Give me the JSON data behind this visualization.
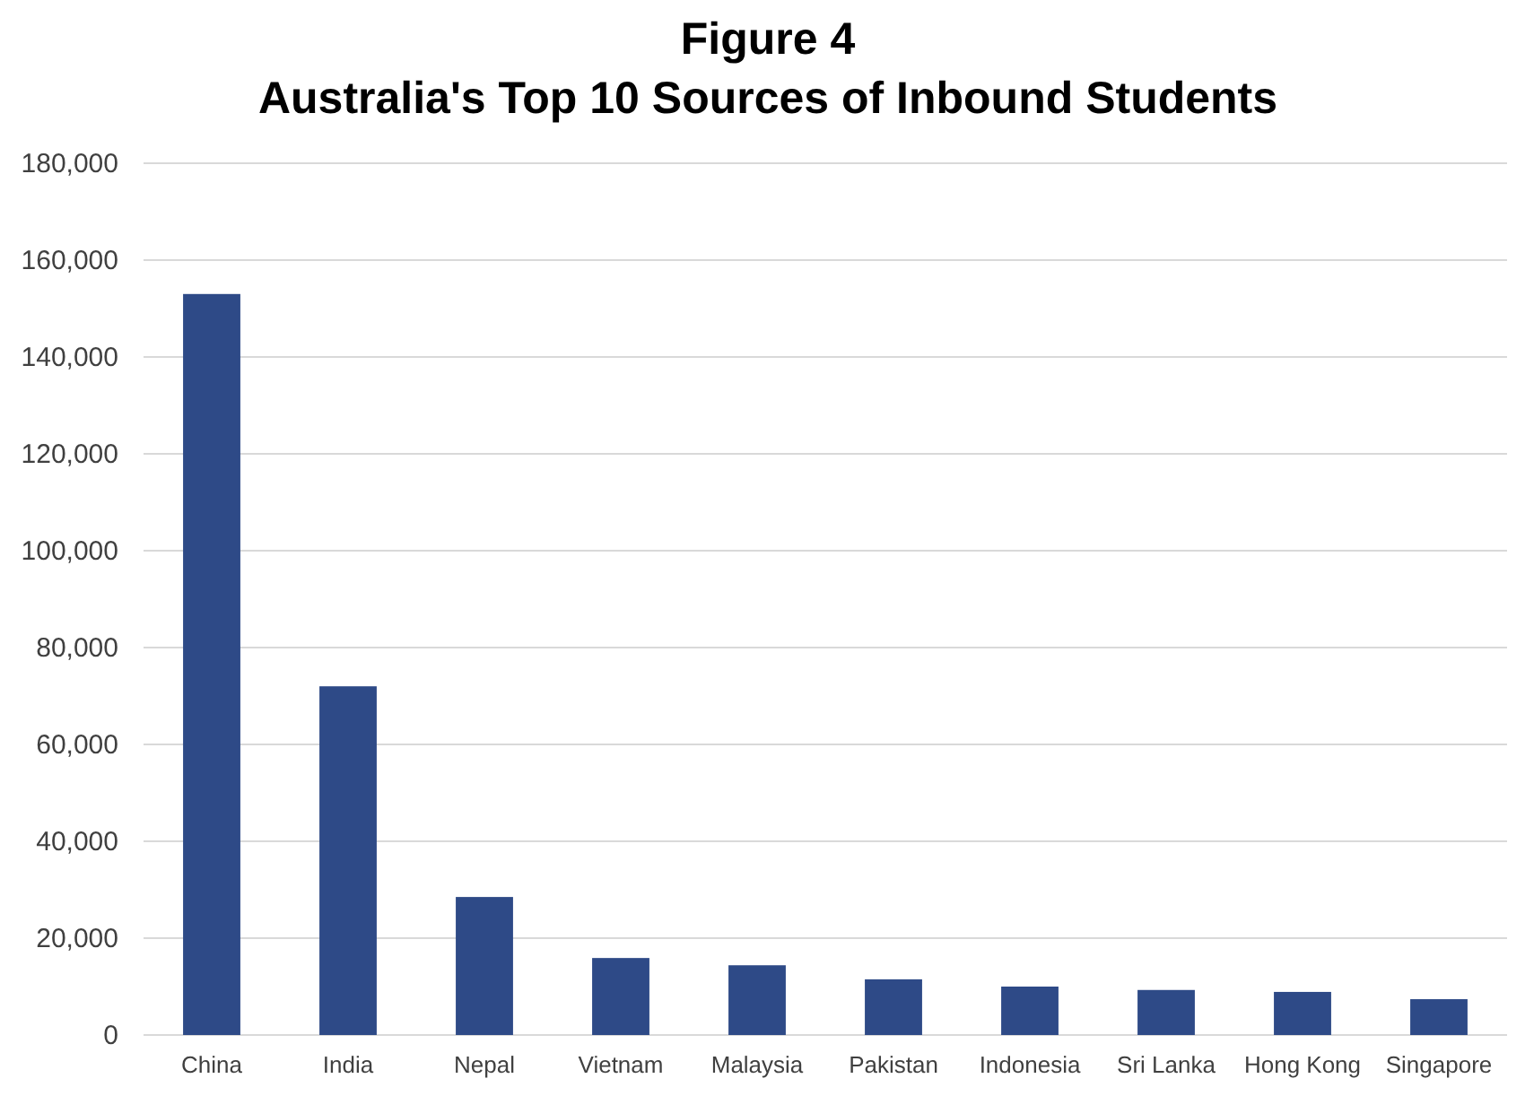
{
  "chart_data": {
    "type": "bar",
    "title": "Figure 4",
    "subtitle": "Australia's Top 10 Sources of Inbound Students",
    "categories": [
      "China",
      "India",
      "Nepal",
      "Vietnam",
      "Malaysia",
      "Pakistan",
      "Indonesia",
      "Sri Lanka",
      "Hong Kong",
      "Singapore"
    ],
    "values": [
      153000,
      72000,
      28500,
      15900,
      14400,
      11500,
      10000,
      9300,
      8900,
      7400
    ],
    "color": "#2e4a87",
    "ylim": [
      0,
      180000
    ],
    "yticks": [
      {
        "value": 0,
        "label": "0"
      },
      {
        "value": 20000,
        "label": "20,000"
      },
      {
        "value": 40000,
        "label": "40,000"
      },
      {
        "value": 60000,
        "label": "60,000"
      },
      {
        "value": 80000,
        "label": "80,000"
      },
      {
        "value": 100000,
        "label": "100,000"
      },
      {
        "value": 120000,
        "label": "120,000"
      },
      {
        "value": 140000,
        "label": "140,000"
      },
      {
        "value": 160000,
        "label": "160,000"
      },
      {
        "value": 180000,
        "label": "180,000"
      }
    ],
    "grid": true
  }
}
